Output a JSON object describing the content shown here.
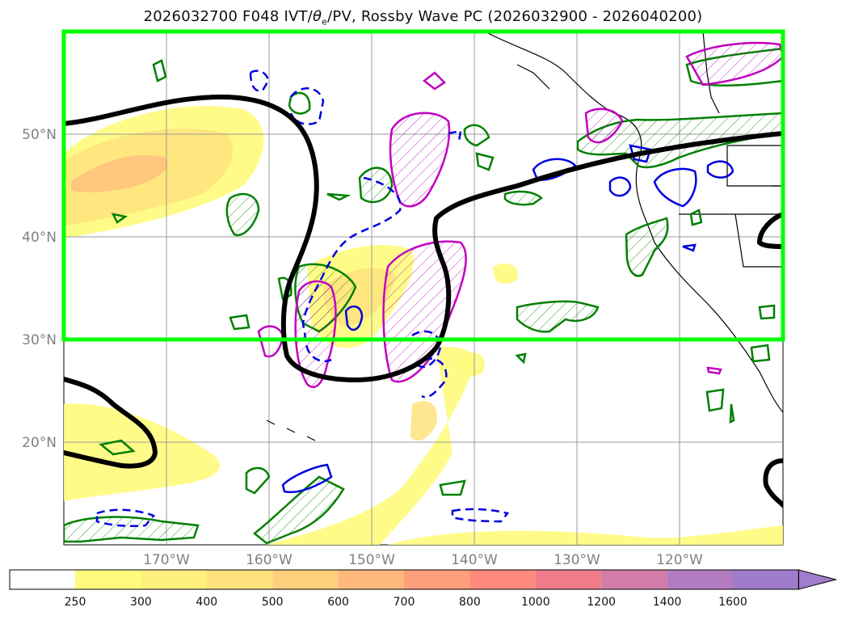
{
  "title": {
    "prefix": "2026032700 F048 IVT/",
    "theta": "θ",
    "sub": "e",
    "suffix": "/PV, Rossby Wave PC (2026032900 - 2026040200)"
  },
  "map": {
    "lat_labels": [
      "50°N",
      "40°N",
      "30°N",
      "20°N"
    ],
    "lon_labels": [
      "170°W",
      "160°W",
      "150°W",
      "140°W",
      "130°W",
      "120°W"
    ],
    "highlight_color": "#00ff00",
    "box_lat_range": [
      30,
      60
    ],
    "ivt_levels_shown": "IVT shading"
  },
  "colorbar": {
    "labels": [
      "250",
      "300",
      "400",
      "500",
      "600",
      "700",
      "800",
      "1000",
      "1200",
      "1400",
      "1600"
    ],
    "colors": [
      "#ffffff",
      "#fffb7c",
      "#fff07c",
      "#ffe27c",
      "#ffd07c",
      "#ffb87c",
      "#ff9f7c",
      "#ff8a7c",
      "#f07c8a",
      "#d27ca8",
      "#b47cc0",
      "#a07ccc"
    ]
  }
}
